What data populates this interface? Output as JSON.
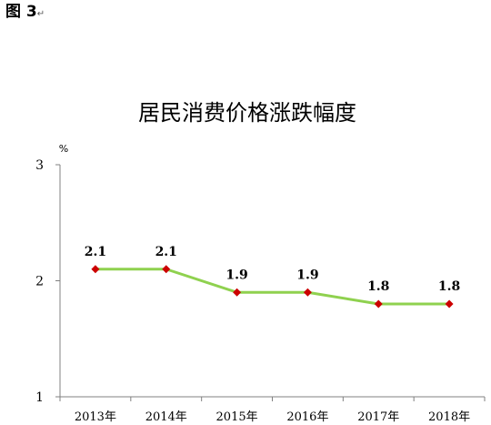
{
  "figure_label": "图 3",
  "figure_mark": "↵",
  "chart_data": {
    "type": "line",
    "title": "居民消费价格涨跌幅度",
    "ylabel": "%",
    "xlabel": "",
    "categories": [
      "2013年",
      "2014年",
      "2015年",
      "2016年",
      "2017年",
      "2018年"
    ],
    "values": [
      2.1,
      2.1,
      1.9,
      1.9,
      1.8,
      1.8
    ],
    "value_labels": [
      "2.1",
      "2.1",
      "1.9",
      "1.9",
      "1.8",
      "1.8"
    ],
    "ylim": [
      1,
      3
    ],
    "yticks": [
      "1",
      "2",
      "3"
    ],
    "grid": false,
    "legend": "none",
    "colors": {
      "line": "#8fd14f",
      "marker": "#cc0000",
      "axis": "#808080"
    }
  }
}
